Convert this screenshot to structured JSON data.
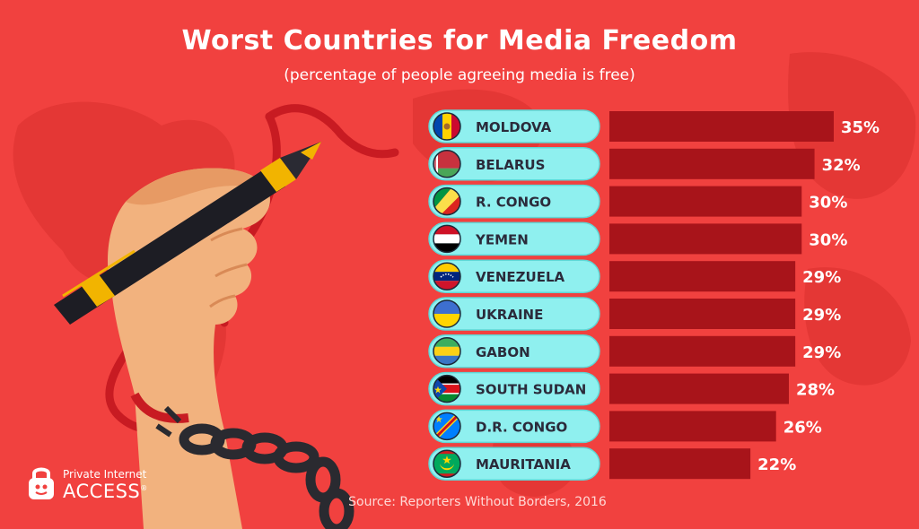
{
  "header": {
    "title": "Worst Countries for Media Freedom",
    "subtitle": "(percentage of people agreeing media is free)"
  },
  "source": "Source: Reporters Without Borders, 2016",
  "logo": {
    "line1": "Private Internet",
    "line2": "ACCESS",
    "mark": "®"
  },
  "colors": {
    "background": "#f1413f",
    "bar": "#a8141a",
    "pill": "#8ff0ef",
    "label_text": "#2b2b3b",
    "value_text": "#ffffff"
  },
  "chart_data": {
    "type": "bar",
    "orientation": "horizontal",
    "title": "Worst Countries for Media Freedom",
    "subtitle": "(percentage of people agreeing media is free)",
    "categories": [
      "MOLDOVA",
      "BELARUS",
      "R. CONGO",
      "YEMEN",
      "VENEZUELA",
      "UKRAINE",
      "GABON",
      "SOUTH SUDAN",
      "D.R. CONGO",
      "MAURITANIA"
    ],
    "values": [
      35,
      32,
      30,
      30,
      29,
      29,
      29,
      28,
      26,
      22
    ],
    "value_labels": [
      "35%",
      "32%",
      "30%",
      "30%",
      "29%",
      "29%",
      "29%",
      "28%",
      "26%",
      "22%"
    ],
    "flags": [
      "moldova-flag-icon",
      "belarus-flag-icon",
      "congo-flag-icon",
      "yemen-flag-icon",
      "venezuela-flag-icon",
      "ukraine-flag-icon",
      "gabon-flag-icon",
      "south-sudan-flag-icon",
      "dr-congo-flag-icon",
      "mauritania-flag-icon"
    ],
    "unit": "%",
    "grid": false,
    "legend": "none"
  }
}
